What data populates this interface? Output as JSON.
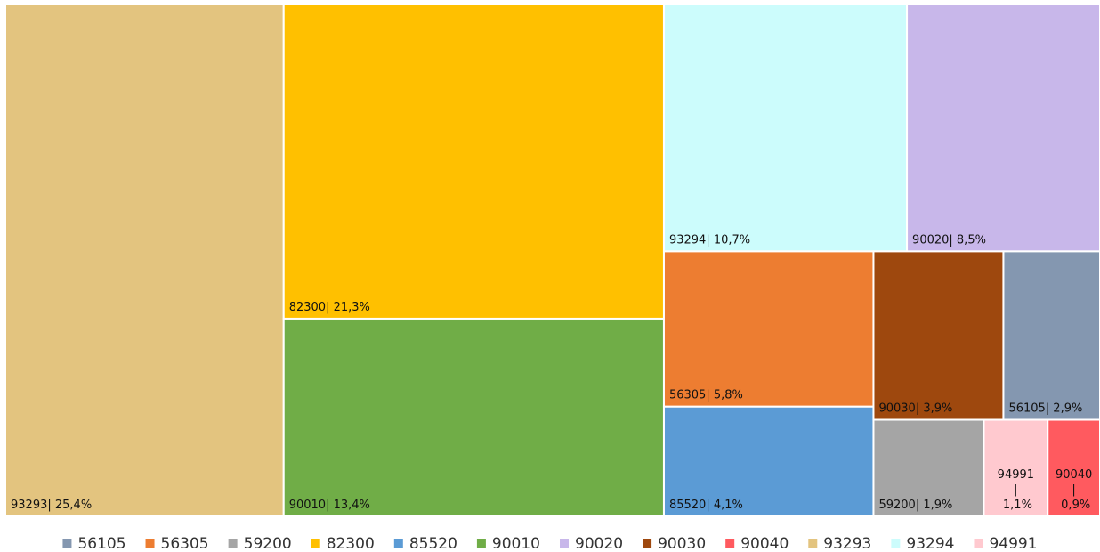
{
  "chart_data": {
    "type": "treemap",
    "categories": [
      "56105",
      "56305",
      "59200",
      "82300",
      "85520",
      "90010",
      "90020",
      "90030",
      "90040",
      "93293",
      "93294",
      "94991"
    ],
    "values": [
      2.9,
      5.8,
      1.9,
      21.3,
      4.1,
      13.4,
      8.5,
      3.9,
      0.9,
      25.4,
      10.7,
      1.1
    ],
    "value_labels": [
      "56105| 2,9%",
      "56305| 5,8%",
      "59200| 1,9%",
      "82300| 21,3%",
      "85520| 4,1%",
      "90010| 13,4%",
      "90020| 8,5%",
      "90030| 3,9%",
      "90040| 0,9%",
      "93293| 25,4%",
      "93294| 10,7%",
      "94991| 1,1%"
    ],
    "colors": [
      "#8497b0",
      "#ed7d31",
      "#a5a5a5",
      "#ffc000",
      "#5b9bd5",
      "#70ad47",
      "#c8b7ea",
      "#9e480e",
      "#ff5a5f",
      "#e3c47f",
      "#ccfcfc",
      "#ffc9cf"
    ],
    "legend": "bottom"
  }
}
